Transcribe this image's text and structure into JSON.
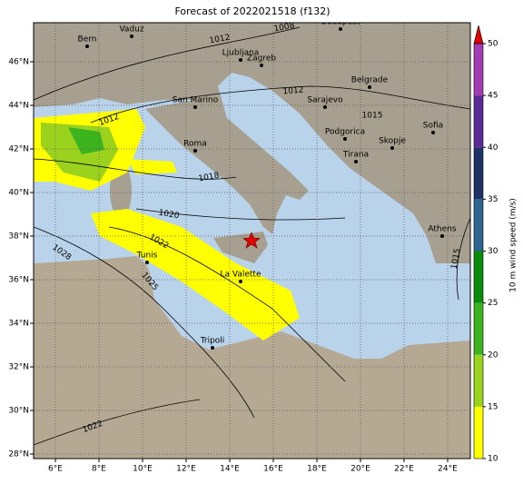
{
  "map": {
    "title": "Forecast of 2022021518 (f132)",
    "lon_ticks": [
      {
        "value": 6,
        "label": "6°E"
      },
      {
        "value": 8,
        "label": "8°E"
      },
      {
        "value": 10,
        "label": "10°E"
      },
      {
        "value": 12,
        "label": "12°E"
      },
      {
        "value": 14,
        "label": "14°E"
      },
      {
        "value": 16,
        "label": "16°E"
      },
      {
        "value": 18,
        "label": "18°E"
      },
      {
        "value": 20,
        "label": "20°E"
      },
      {
        "value": 22,
        "label": "22°E"
      },
      {
        "value": 24,
        "label": "24°E"
      }
    ],
    "lat_ticks": [
      {
        "value": 28,
        "label": "28°N"
      },
      {
        "value": 30,
        "label": "30°N"
      },
      {
        "value": 32,
        "label": "32°N"
      },
      {
        "value": 34,
        "label": "34°N"
      },
      {
        "value": 36,
        "label": "36°N"
      },
      {
        "value": 38,
        "label": "38°N"
      },
      {
        "value": 40,
        "label": "40°N"
      },
      {
        "value": 42,
        "label": "42°N"
      },
      {
        "value": 44,
        "label": "44°N"
      },
      {
        "value": 46,
        "label": "46°N"
      }
    ],
    "cities": [
      "Bern",
      "Vaduz",
      "Budapest",
      "Ljubljana",
      "Zagreb",
      "San Marino",
      "Belgrade",
      "Sarajevo",
      "Roma",
      "Podgorica",
      "Skopje",
      "Sofia",
      "Tirana",
      "Athens",
      "Tunis",
      "La Valette",
      "Tripoli"
    ],
    "isobar_labels": [
      1012,
      1008,
      1012,
      1012,
      1015,
      1018,
      1020,
      1022,
      1028,
      1025,
      1015,
      1022
    ],
    "colorbar": {
      "label": "10 m wind speed (m/s)",
      "ticks": [
        10,
        15,
        20,
        25,
        30,
        35,
        40,
        45,
        50
      ],
      "colors": [
        "#ffff00",
        "#9ad21e",
        "#3cb41e",
        "#0a8c0a",
        "#2e6690",
        "#1e3266",
        "#5a2a96",
        "#a43cb4"
      ],
      "extend_color": "#e00000"
    }
  }
}
